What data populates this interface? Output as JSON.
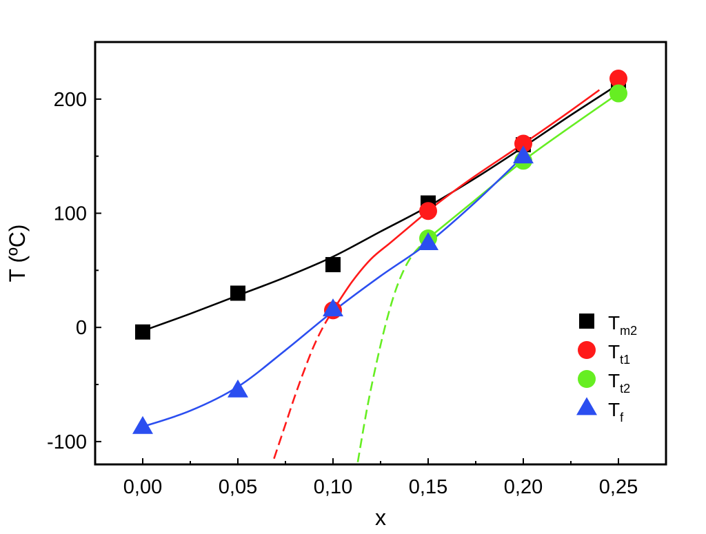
{
  "chart_data": {
    "type": "scatter",
    "xlabel": "x",
    "ylabel": "T (ºC)",
    "xlim": [
      -0.025,
      0.275
    ],
    "ylim": [
      -120,
      250
    ],
    "x_ticks": [
      {
        "value": 0.0,
        "label": "0,00"
      },
      {
        "value": 0.05,
        "label": "0,05"
      },
      {
        "value": 0.1,
        "label": "0,10"
      },
      {
        "value": 0.15,
        "label": "0,15"
      },
      {
        "value": 0.2,
        "label": "0,20"
      },
      {
        "value": 0.25,
        "label": "0,25"
      }
    ],
    "y_ticks": [
      {
        "value": -100,
        "label": "-100"
      },
      {
        "value": 0,
        "label": "0"
      },
      {
        "value": 100,
        "label": "100"
      },
      {
        "value": 200,
        "label": "200"
      }
    ],
    "legend_position": "bottom-right",
    "series": [
      {
        "name": "T",
        "subscript": "m2",
        "marker": "square",
        "color": "#000000",
        "x": [
          0.0,
          0.05,
          0.1,
          0.15,
          0.2,
          0.25
        ],
        "y": [
          -4,
          30,
          55,
          109,
          160,
          213
        ]
      },
      {
        "name": "T",
        "subscript": "t1",
        "marker": "circle",
        "color": "#ff1a1a",
        "x": [
          0.1,
          0.15,
          0.2,
          0.25
        ],
        "y": [
          15,
          102,
          161,
          218
        ]
      },
      {
        "name": "T",
        "subscript": "t2",
        "marker": "circle",
        "color": "#66ee22",
        "x": [
          0.15,
          0.2,
          0.25
        ],
        "y": [
          78,
          146,
          205
        ]
      },
      {
        "name": "T",
        "subscript": "f",
        "marker": "triangle",
        "color": "#2b4ef0",
        "x": [
          0.0,
          0.05,
          0.1,
          0.15,
          0.2
        ],
        "y": [
          -87,
          -55,
          16,
          74,
          150
        ]
      }
    ],
    "fit_curves": [
      {
        "series": "m2",
        "color": "#000000",
        "style": "solid",
        "x": [
          0.0,
          0.025,
          0.05,
          0.075,
          0.1,
          0.125,
          0.15,
          0.175,
          0.2,
          0.225,
          0.25
        ],
        "y": [
          -3,
          12,
          28,
          44,
          62,
          84,
          106,
          131,
          158,
          186,
          213
        ]
      },
      {
        "series": "t1",
        "color": "#ff1a1a",
        "style": "solid",
        "x": [
          0.1,
          0.11,
          0.12,
          0.13,
          0.14,
          0.15,
          0.16,
          0.175,
          0.2,
          0.22,
          0.24
        ],
        "y": [
          15,
          40,
          60,
          74,
          88,
          102,
          115,
          133,
          161,
          184,
          208
        ]
      },
      {
        "series": "t1",
        "color": "#ff1a1a",
        "style": "dashed",
        "x": [
          0.069,
          0.075,
          0.08,
          0.085,
          0.09,
          0.095,
          0.1
        ],
        "y": [
          -115,
          -85,
          -60,
          -37,
          -16,
          1,
          15
        ]
      },
      {
        "series": "t2",
        "color": "#66ee22",
        "style": "solid",
        "x": [
          0.15,
          0.175,
          0.2,
          0.225,
          0.25
        ],
        "y": [
          78,
          112,
          146,
          176,
          205
        ]
      },
      {
        "series": "t2",
        "color": "#66ee22",
        "style": "dashed",
        "x": [
          0.113,
          0.118,
          0.123,
          0.128,
          0.133,
          0.138,
          0.143,
          0.15
        ],
        "y": [
          -118,
          -70,
          -30,
          5,
          33,
          53,
          66,
          78
        ]
      },
      {
        "series": "f",
        "color": "#2b4ef0",
        "style": "solid",
        "x": [
          0.0,
          0.025,
          0.05,
          0.075,
          0.1,
          0.125,
          0.15,
          0.175,
          0.2
        ],
        "y": [
          -87,
          -73,
          -52,
          -20,
          14,
          45,
          74,
          110,
          150
        ]
      }
    ]
  }
}
